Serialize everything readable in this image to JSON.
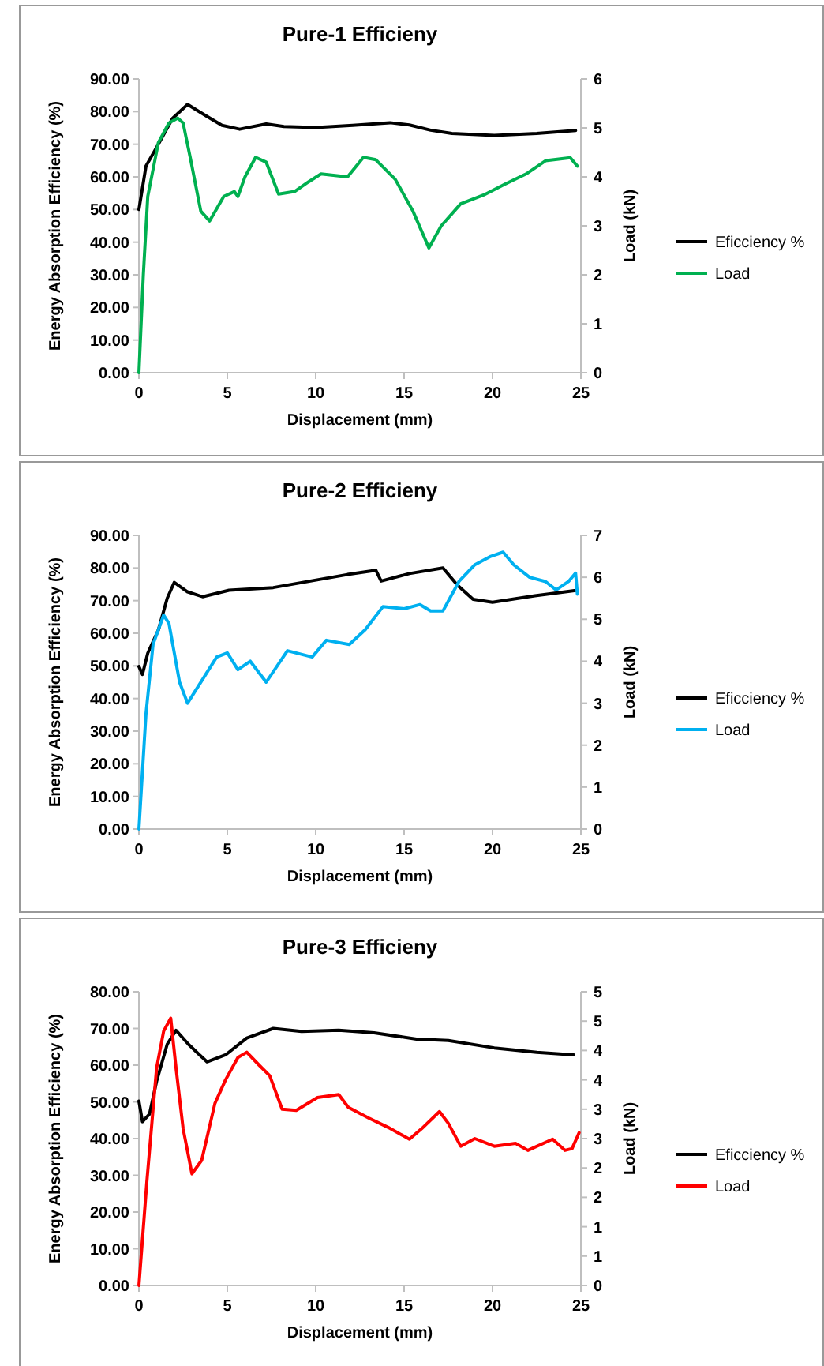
{
  "chart_data": [
    {
      "type": "line",
      "title": "Pure-1 Efficieny",
      "xlabel": "Displacement (mm)",
      "ylabel": "Energy Absorption Efficiency (%)",
      "y2label": "Load (kN)",
      "legend": "right",
      "xlim": [
        0,
        25
      ],
      "xticks": [
        0,
        5,
        10,
        15,
        20,
        25
      ],
      "ylim": [
        0,
        90
      ],
      "yticks": [
        {
          "value": 0,
          "label": "0.00"
        },
        {
          "value": 10,
          "label": "10.00"
        },
        {
          "value": 20,
          "label": "20.00"
        },
        {
          "value": 30,
          "label": "30.00"
        },
        {
          "value": 40,
          "label": "40.00"
        },
        {
          "value": 50,
          "label": "50.00"
        },
        {
          "value": 60,
          "label": "60.00"
        },
        {
          "value": 70,
          "label": "70.00"
        },
        {
          "value": 80,
          "label": "80.00"
        },
        {
          "value": 90,
          "label": "90.00"
        }
      ],
      "y2lim": [
        0,
        6
      ],
      "y2ticks": [
        0,
        1,
        2,
        3,
        4,
        5,
        6
      ],
      "series": [
        {
          "name": "Eficciency %",
          "color": "#000000",
          "x": [
            0,
            0.4,
            1,
            1.9,
            2.75,
            3.8,
            4.7,
            5.7,
            7.2,
            8.2,
            10,
            12.1,
            14.2,
            15.3,
            16.5,
            17.7,
            20.1,
            22.5,
            24.7
          ],
          "values": [
            50,
            63.3,
            69,
            77.9,
            82.2,
            78.7,
            75.8,
            74.6,
            76.2,
            75.4,
            75.1,
            75.8,
            76.6,
            75.9,
            74.3,
            73.3,
            72.7,
            73.3,
            74.2
          ]
        },
        {
          "name": "Load",
          "color": "#00b050",
          "axis": "y2",
          "x": [
            0,
            0.25,
            0.5,
            1.1,
            1.7,
            2.2,
            2.5,
            2.9,
            3.5,
            4,
            4.8,
            5.4,
            5.6,
            6,
            6.6,
            7.2,
            7.9,
            8.8,
            9.6,
            10.3,
            11.8,
            12.7,
            13.4,
            14.5,
            15.5,
            16.4,
            17.1,
            18.2,
            19.5,
            20.7,
            21.9,
            23,
            24.4,
            24.8
          ],
          "values": [
            0,
            2,
            3.6,
            4.7,
            5.1,
            5.2,
            5.1,
            4.4,
            3.3,
            3.1,
            3.6,
            3.7,
            3.6,
            4,
            4.4,
            4.3,
            3.65,
            3.7,
            3.9,
            4.06,
            4,
            4.4,
            4.35,
            3.95,
            3.3,
            2.55,
            3,
            3.45,
            3.63,
            3.85,
            4.06,
            4.33,
            4.39,
            4.22
          ]
        }
      ]
    },
    {
      "type": "line",
      "title": "Pure-2 Efficieny",
      "xlabel": "Displacement (mm)",
      "ylabel": "Energy Absorption Efficiency (%)",
      "y2label": "Load (kN)",
      "legend": "right",
      "xlim": [
        0,
        25
      ],
      "xticks": [
        0,
        5,
        10,
        15,
        20,
        25
      ],
      "ylim": [
        0,
        90
      ],
      "yticks": [
        {
          "value": 0,
          "label": "0.00"
        },
        {
          "value": 10,
          "label": "10.00"
        },
        {
          "value": 20,
          "label": "20.00"
        },
        {
          "value": 30,
          "label": "30.00"
        },
        {
          "value": 40,
          "label": "40.00"
        },
        {
          "value": 50,
          "label": "50.00"
        },
        {
          "value": 60,
          "label": "60.00"
        },
        {
          "value": 70,
          "label": "70.00"
        },
        {
          "value": 80,
          "label": "80.00"
        },
        {
          "value": 90,
          "label": "90.00"
        }
      ],
      "y2lim": [
        0,
        7
      ],
      "y2ticks": [
        0,
        1,
        2,
        3,
        4,
        5,
        6,
        7
      ],
      "series": [
        {
          "name": "Eficciency %",
          "color": "#000000",
          "x": [
            0,
            0.2,
            0.5,
            1.1,
            1.6,
            2,
            2.75,
            3.6,
            5.1,
            7.6,
            9.7,
            11.8,
            13.4,
            13.7,
            15.3,
            17.2,
            18,
            18.9,
            20,
            22.4,
            24.8
          ],
          "values": [
            49.8,
            47.4,
            53.9,
            61,
            70.7,
            75.6,
            72.7,
            71.2,
            73.2,
            74,
            76,
            78,
            79.3,
            76,
            78.3,
            80,
            74.8,
            70.4,
            69.5,
            71.5,
            73.2
          ]
        },
        {
          "name": "Load",
          "color": "#00b0f0",
          "axis": "y2",
          "x": [
            0,
            0.4,
            0.8,
            1.4,
            1.7,
            2.3,
            2.75,
            3.8,
            4.4,
            5,
            5.6,
            6.3,
            7.2,
            8.4,
            9.8,
            10.6,
            11.9,
            12.8,
            13.8,
            15,
            15.9,
            16.5,
            17.2,
            18.1,
            19,
            19.9,
            20.6,
            21.2,
            22.1,
            23,
            23.6,
            24.3,
            24.7,
            24.8
          ],
          "values": [
            0,
            2.75,
            4.4,
            5.1,
            4.9,
            3.5,
            3,
            3.7,
            4.1,
            4.2,
            3.8,
            4,
            3.5,
            4.25,
            4.1,
            4.5,
            4.4,
            4.75,
            5.3,
            5.25,
            5.35,
            5.2,
            5.2,
            5.9,
            6.3,
            6.5,
            6.6,
            6.3,
            6,
            5.9,
            5.7,
            5.9,
            6.1,
            5.6
          ]
        }
      ]
    },
    {
      "type": "line",
      "title": "Pure-3 Efficieny",
      "xlabel": "Displacement (mm)",
      "ylabel": "Energy Absorption Efficiency (%)",
      "y2label": "Load (kN)",
      "legend": "right",
      "xlim": [
        0,
        25
      ],
      "xticks": [
        0,
        5,
        10,
        15,
        20,
        25
      ],
      "ylim": [
        0,
        80
      ],
      "yticks": [
        {
          "value": 0,
          "label": "0.00"
        },
        {
          "value": 10,
          "label": "10.00"
        },
        {
          "value": 20,
          "label": "20.00"
        },
        {
          "value": 30,
          "label": "30.00"
        },
        {
          "value": 40,
          "label": "40.00"
        },
        {
          "value": 50,
          "label": "50.00"
        },
        {
          "value": 60,
          "label": "60.00"
        },
        {
          "value": 70,
          "label": "70.00"
        },
        {
          "value": 80,
          "label": "80.00"
        }
      ],
      "y2lim": [
        0,
        5
      ],
      "y2ticks": [
        0,
        {
          "value": 0.5,
          "label": "1"
        },
        1,
        {
          "value": 1.5,
          "label": "2"
        },
        2,
        {
          "value": 2.5,
          "label": "3"
        },
        3,
        {
          "value": 3.5,
          "label": "4"
        },
        4,
        {
          "value": 4.5,
          "label": "5"
        },
        5
      ],
      "series": [
        {
          "name": "Eficciency %",
          "color": "#000000",
          "x": [
            0,
            0.2,
            0.6,
            1,
            1.6,
            2.1,
            2.8,
            3.85,
            4.9,
            6.1,
            7.6,
            9.2,
            11.3,
            13.3,
            15.7,
            17.5,
            20.1,
            22.5,
            24.6
          ],
          "values": [
            50.2,
            44.6,
            46.7,
            55.6,
            65.7,
            69.5,
            65.7,
            60.9,
            62.8,
            67.4,
            70,
            69.2,
            69.5,
            68.8,
            67.1,
            66.7,
            64.7,
            63.5,
            62.8
          ]
        },
        {
          "name": "Load",
          "color": "#ff0000",
          "axis": "y2",
          "x": [
            0,
            0.45,
            1,
            1.4,
            1.8,
            2.1,
            2.5,
            3,
            3.55,
            4.3,
            4.9,
            5.6,
            6.1,
            6.8,
            7.4,
            8.1,
            8.9,
            10.1,
            11.3,
            11.85,
            13,
            14.1,
            15.3,
            16,
            17,
            17.5,
            18.2,
            19,
            20.1,
            21.3,
            22,
            23.4,
            24.1,
            24.5,
            24.9
          ],
          "values": [
            0,
            1.77,
            3.7,
            4.33,
            4.55,
            3.7,
            2.67,
            1.9,
            2.13,
            3.1,
            3.5,
            3.88,
            3.97,
            3.75,
            3.57,
            3,
            2.98,
            3.2,
            3.25,
            3.03,
            2.85,
            2.69,
            2.49,
            2.67,
            2.96,
            2.76,
            2.37,
            2.5,
            2.37,
            2.42,
            2.3,
            2.49,
            2.3,
            2.33,
            2.6
          ]
        }
      ]
    }
  ]
}
